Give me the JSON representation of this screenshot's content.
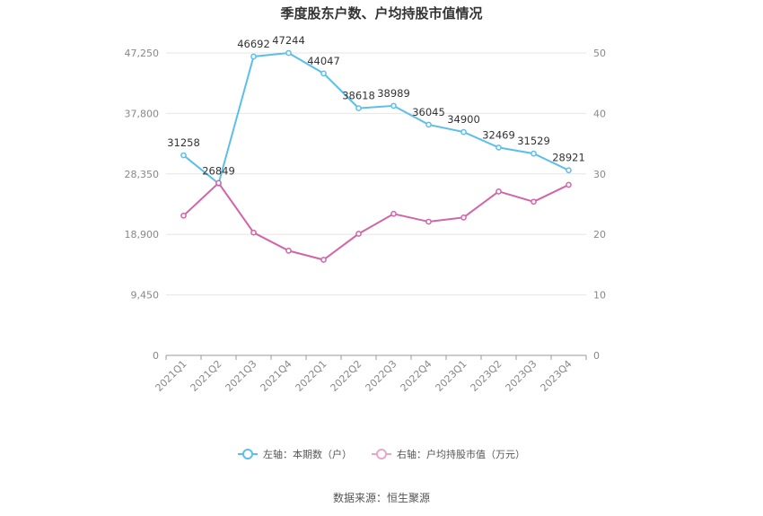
{
  "title": "季度股东户数、户均持股市值情况",
  "source_note": "数据来源：恒生聚源",
  "chart_data": {
    "type": "line",
    "categories": [
      "2021Q1",
      "2021Q2",
      "2021Q3",
      "2021Q4",
      "2022Q1",
      "2022Q2",
      "2022Q3",
      "2022Q4",
      "2023Q1",
      "2023Q2",
      "2023Q3",
      "2023Q4"
    ],
    "left_axis": {
      "ylim": [
        0,
        47250
      ],
      "ticks": [
        0,
        9450,
        18900,
        28350,
        37800,
        47250
      ],
      "tick_labels": [
        "0",
        "9,450",
        "18,900",
        "28,350",
        "37,800",
        "47,250"
      ]
    },
    "right_axis": {
      "ylim": [
        0,
        50
      ],
      "ticks": [
        0,
        10,
        20,
        30,
        40,
        50
      ],
      "tick_labels": [
        "0",
        "10",
        "20",
        "30",
        "40",
        "50"
      ]
    },
    "grid": true,
    "legend_position": "bottom",
    "series": [
      {
        "name": "左轴：本期数（户）",
        "axis": "left",
        "color": "#5bbfea",
        "values": [
          31258,
          26849,
          46692,
          47244,
          44047,
          38618,
          38989,
          36045,
          34900,
          32469,
          31529,
          28921
        ],
        "labels": [
          "31258",
          "26849",
          "46692",
          "47244",
          "44047",
          "38618",
          "38989",
          "36045",
          "34900",
          "32469",
          "31529",
          "28921"
        ]
      },
      {
        "name": "右轴：户均持股市值（万元）",
        "axis": "right",
        "color": "#d264a8",
        "values": [
          23.1,
          28.5,
          20.3,
          17.3,
          15.8,
          20.1,
          23.4,
          22.1,
          22.8,
          27.1,
          25.4,
          28.2
        ]
      }
    ]
  }
}
